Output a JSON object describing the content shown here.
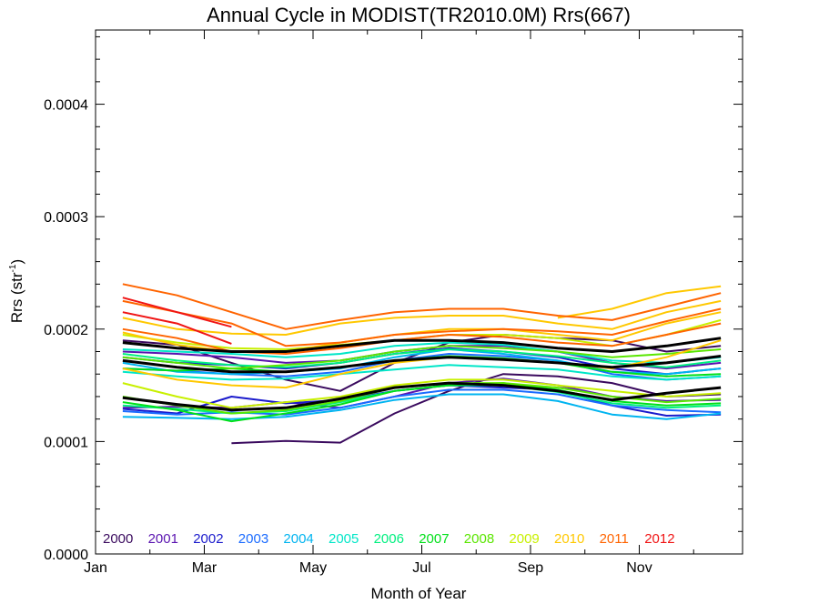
{
  "chart_data": {
    "type": "line",
    "title": "Annual Cycle in MODIST(TR2010.0M) Rrs(667)",
    "xlabel": "Month of Year",
    "ylabel_main": "Rrs (str",
    "ylabel_sup": "-1",
    "ylabel_tail": ")",
    "xlim": [
      1,
      12.9
    ],
    "ylim": [
      0.0,
      0.000466
    ],
    "grid": false,
    "legend_position": "bottom-left",
    "x_ticks": [
      {
        "value": 1,
        "label": "Jan"
      },
      {
        "value": 3,
        "label": "Mar"
      },
      {
        "value": 5,
        "label": "May"
      },
      {
        "value": 7,
        "label": "Jul"
      },
      {
        "value": 9,
        "label": "Sep"
      },
      {
        "value": 11,
        "label": "Nov"
      }
    ],
    "y_ticks": [
      {
        "value": 0.0,
        "label": "0.0000"
      },
      {
        "value": 0.0001,
        "label": "0.0001"
      },
      {
        "value": 0.0002,
        "label": "0.0002"
      },
      {
        "value": 0.0003,
        "label": "0.0003"
      },
      {
        "value": 0.0004,
        "label": "0.0004"
      }
    ],
    "legend": [
      {
        "label": "2000",
        "color": "#3a0a5e"
      },
      {
        "label": "2001",
        "color": "#5a14b0"
      },
      {
        "label": "2002",
        "color": "#1a1acc"
      },
      {
        "label": "2003",
        "color": "#1a6bff"
      },
      {
        "label": "2004",
        "color": "#00b4f0"
      },
      {
        "label": "2005",
        "color": "#00e6c8"
      },
      {
        "label": "2006",
        "color": "#00f080"
      },
      {
        "label": "2007",
        "color": "#00e01a"
      },
      {
        "label": "2008",
        "color": "#5ae600"
      },
      {
        "label": "2009",
        "color": "#c8f000"
      },
      {
        "label": "2010",
        "color": "#ffc800"
      },
      {
        "label": "2011",
        "color": "#ff6400"
      },
      {
        "label": "2012",
        "color": "#f01414"
      }
    ],
    "x": [
      1.5,
      2.5,
      3.5,
      4.5,
      5.5,
      6.5,
      7.5,
      8.5,
      9.5,
      10.5,
      11.5,
      12.5
    ],
    "series": [
      {
        "color": "#3a0a5e",
        "width": 2,
        "values": [
          null,
          null,
          9.85e-05,
          0.0001005,
          9.9e-05,
          0.000125,
          0.000145,
          0.00016,
          0.000158,
          0.000152,
          0.00014,
          0.000142
        ]
      },
      {
        "color": "#3a0a5e",
        "width": 2,
        "values": [
          0.00019,
          0.000186,
          0.00017,
          0.000155,
          0.000145,
          0.00017,
          0.000188,
          0.000195,
          0.000192,
          0.00019,
          0.00018,
          0.000185
        ]
      },
      {
        "color": "#5a14b0",
        "width": 2,
        "values": [
          0.00013,
          0.000131,
          0.00013,
          0.000135,
          0.00013,
          0.00014,
          0.000152,
          0.000156,
          0.00015,
          0.00014,
          0.000136,
          0.000137
        ]
      },
      {
        "color": "#5a14b0",
        "width": 2,
        "values": [
          0.00018,
          0.000178,
          0.000175,
          0.00017,
          0.000172,
          0.00018,
          0.000185,
          0.000185,
          0.00018,
          0.00017,
          0.000165,
          0.00017
        ]
      },
      {
        "color": "#1a1acc",
        "width": 2,
        "values": [
          0.000129,
          0.000125,
          0.00014,
          0.000134,
          0.000137,
          0.000145,
          0.00015,
          0.000148,
          0.000146,
          0.000132,
          0.000123,
          0.000124
        ]
      },
      {
        "color": "#1a1acc",
        "width": 2,
        "values": [
          0.000175,
          0.00017,
          0.000168,
          0.000165,
          0.00017,
          0.000178,
          0.000183,
          0.00018,
          0.000175,
          0.000165,
          0.00016,
          0.000165
        ]
      },
      {
        "color": "#1a6bff",
        "width": 2,
        "values": [
          0.000127,
          0.000124,
          0.000126,
          0.000124,
          0.00013,
          0.00014,
          0.000146,
          0.000146,
          0.000142,
          0.000132,
          0.000128,
          0.000126
        ]
      },
      {
        "color": "#1a6bff",
        "width": 2,
        "values": [
          0.000165,
          0.000163,
          0.00016,
          0.000158,
          0.000162,
          0.000172,
          0.000178,
          0.000176,
          0.000172,
          0.00016,
          0.000155,
          0.000158
        ]
      },
      {
        "color": "#00b4f0",
        "width": 2,
        "values": [
          0.000122,
          0.000121,
          0.00012,
          0.000122,
          0.000128,
          0.000137,
          0.000142,
          0.000142,
          0.000136,
          0.000124,
          0.00012,
          0.000125
        ]
      },
      {
        "color": "#00b4f0",
        "width": 2,
        "values": [
          0.00017,
          0.000162,
          0.00016,
          0.000162,
          0.000165,
          0.000175,
          0.000182,
          0.000178,
          0.000172,
          0.000162,
          0.00016,
          0.000165
        ]
      },
      {
        "color": "#00e6c8",
        "width": 2,
        "values": [
          0.000162,
          0.000158,
          0.000155,
          0.000156,
          0.00016,
          0.000164,
          0.000168,
          0.000166,
          0.000164,
          0.000158,
          0.000155,
          0.000158
        ]
      },
      {
        "color": "#00e6c8",
        "width": 2,
        "values": [
          0.000182,
          0.00018,
          0.000178,
          0.000175,
          0.000178,
          0.000185,
          0.000188,
          0.000186,
          0.00018,
          0.000172,
          0.00017,
          0.000175
        ]
      },
      {
        "color": "#00f080",
        "width": 2,
        "values": [
          0.000132,
          0.000129,
          0.000125,
          0.000127,
          0.000135,
          0.000145,
          0.00015,
          0.00015,
          0.000144,
          0.000134,
          0.00013,
          0.000132
        ]
      },
      {
        "color": "#00f080",
        "width": 2,
        "values": [
          0.000178,
          0.000172,
          0.000168,
          0.000166,
          0.00017,
          0.000178,
          0.000182,
          0.00018,
          0.000176,
          0.00017,
          0.000166,
          0.000172
        ]
      },
      {
        "color": "#00e01a",
        "width": 2,
        "values": [
          0.000135,
          0.000128,
          0.000118,
          0.000125,
          0.000133,
          0.000145,
          0.00015,
          0.000152,
          0.000146,
          0.000136,
          0.000132,
          0.000134
        ]
      },
      {
        "color": "#00e01a",
        "width": 2,
        "values": [
          0.000165,
          0.000163,
          0.000165,
          0.000162,
          0.000166,
          0.000172,
          0.000176,
          0.000174,
          0.00017,
          0.000162,
          0.000158,
          0.00016
        ]
      },
      {
        "color": "#5ae600",
        "width": 2,
        "values": [
          0.00014,
          0.000132,
          0.000125,
          0.000128,
          0.000136,
          0.000148,
          0.000152,
          0.000152,
          0.000148,
          0.00014,
          0.000135,
          0.000138
        ]
      },
      {
        "color": "#5ae600",
        "width": 2,
        "values": [
          0.000175,
          0.00017,
          0.000165,
          0.000168,
          0.000172,
          0.00018,
          0.000185,
          0.000183,
          0.00018,
          0.000175,
          0.000178,
          0.000182
        ]
      },
      {
        "color": "#c8f000",
        "width": 2,
        "values": [
          0.000152,
          0.00014,
          0.00013,
          0.000135,
          0.00014,
          0.00015,
          0.000155,
          0.000155,
          0.00015,
          0.000145,
          0.00014,
          0.000143
        ]
      },
      {
        "color": "#c8f000",
        "width": 2,
        "values": [
          0.000195,
          0.000188,
          0.000183,
          0.000182,
          0.000186,
          0.00019,
          0.000195,
          0.000195,
          0.000192,
          0.000185,
          0.000195,
          0.000208
        ]
      },
      {
        "color": "#ffc800",
        "width": 2,
        "values": [
          0.00021,
          0.0002,
          0.000196,
          0.000195,
          0.000205,
          0.00021,
          0.000212,
          0.000212,
          0.000205,
          0.0002,
          0.000215,
          0.000225
        ]
      },
      {
        "color": "#ffc800",
        "width": 2,
        "values": [
          0.000165,
          0.000155,
          0.00015,
          0.000148,
          0.00016,
          0.00017,
          0.000175,
          0.000173,
          0.00017,
          0.000165,
          0.000175,
          0.00019
        ]
      },
      {
        "color": "#ffc800",
        "width": 2,
        "values": [
          0.000197,
          0.000186,
          0.00018,
          0.00018,
          0.000188,
          0.000195,
          0.0002,
          0.0002,
          0.000195,
          0.00019,
          0.000205,
          0.000215
        ]
      },
      {
        "color": "#ffc800",
        "width": 2,
        "values": [
          null,
          null,
          null,
          null,
          null,
          null,
          null,
          null,
          0.00021,
          0.000218,
          0.000232,
          0.000238
        ]
      },
      {
        "color": "#ff6400",
        "width": 2,
        "values": [
          0.00024,
          0.00023,
          0.000215,
          0.0002,
          0.000208,
          0.000215,
          0.000218,
          0.000218,
          0.000212,
          0.000208,
          0.00022,
          0.000232
        ]
      },
      {
        "color": "#ff6400",
        "width": 2,
        "values": [
          0.000225,
          0.000215,
          0.000205,
          0.000185,
          0.000188,
          0.000195,
          0.000198,
          0.0002,
          0.000198,
          0.000195,
          0.000207,
          0.000218
        ]
      },
      {
        "color": "#ff6400",
        "width": 2,
        "values": [
          0.0002,
          0.000192,
          0.00018,
          0.000178,
          0.000183,
          0.00019,
          0.000195,
          0.000193,
          0.000188,
          0.000185,
          0.000195,
          0.000205
        ]
      },
      {
        "color": "#f01414",
        "width": 2,
        "values": [
          0.000228,
          0.000215,
          0.000202,
          null,
          null,
          null,
          null,
          null,
          null,
          null,
          null,
          null
        ]
      },
      {
        "color": "#f01414",
        "width": 2,
        "values": [
          0.000215,
          0.000205,
          0.000187,
          null,
          null,
          null,
          null,
          null,
          null,
          null,
          null,
          null
        ]
      },
      {
        "color": "#000000",
        "width": 3,
        "values": [
          0.000188,
          0.000183,
          0.00018,
          0.00018,
          0.000185,
          0.00019,
          0.00019,
          0.000188,
          0.000183,
          0.00018,
          0.000185,
          0.000192
        ]
      },
      {
        "color": "#000000",
        "width": 3,
        "values": [
          0.000172,
          0.000166,
          0.000162,
          0.000162,
          0.000166,
          0.000172,
          0.000175,
          0.000173,
          0.00017,
          0.000166,
          0.00017,
          0.000176
        ]
      },
      {
        "color": "#000000",
        "width": 3,
        "values": [
          0.000139,
          0.000133,
          0.000128,
          0.00013,
          0.000138,
          0.000148,
          0.000152,
          0.00015,
          0.000145,
          0.000137,
          0.000143,
          0.000148
        ]
      }
    ]
  }
}
